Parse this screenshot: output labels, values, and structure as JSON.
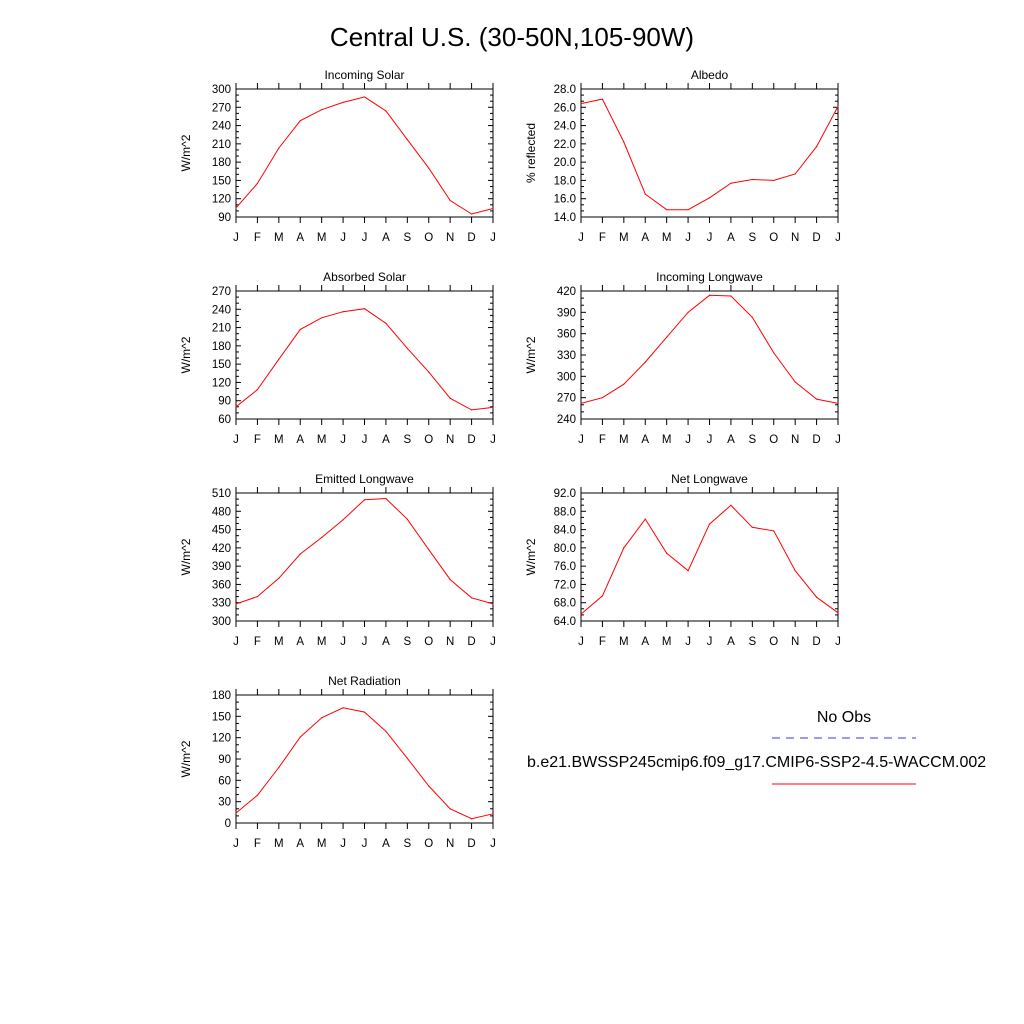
{
  "figure": {
    "title": "Central U.S. (30-50N,105-90W)",
    "series_color": "#ff0000",
    "obs_color": "#3333ff"
  },
  "legend": {
    "entries": [
      {
        "label": "No Obs",
        "style": "dashed",
        "color": "#3333ff"
      },
      {
        "label": "b.e21.BWSSP245cmip6.f09_g17.CMIP6-SSP2-4.5-WACCM.002",
        "style": "solid",
        "color": "#ff0000"
      }
    ]
  },
  "chart_data": [
    {
      "type": "line",
      "title": "Incoming Solar",
      "ylabel": "W/m^2",
      "categories": [
        "J",
        "F",
        "M",
        "A",
        "M",
        "J",
        "J",
        "A",
        "S",
        "O",
        "N",
        "D",
        "J"
      ],
      "ylim": [
        90,
        300
      ],
      "yticks": [
        "90",
        "120",
        "150",
        "180",
        "210",
        "240",
        "270",
        "300"
      ],
      "series": [
        {
          "values": [
            105,
            145,
            203,
            248,
            266,
            278,
            287,
            264,
            217,
            170,
            117,
            95,
            104
          ]
        }
      ]
    },
    {
      "type": "line",
      "title": "Albedo",
      "ylabel": "% reflected",
      "categories": [
        "J",
        "F",
        "M",
        "A",
        "M",
        "J",
        "J",
        "A",
        "S",
        "O",
        "N",
        "D",
        "J"
      ],
      "ylim": [
        14.0,
        28.0
      ],
      "yticks": [
        "14.0",
        "16.0",
        "18.0",
        "20.0",
        "22.0",
        "24.0",
        "26.0",
        "28.0"
      ],
      "series": [
        {
          "values": [
            26.4,
            26.9,
            22.2,
            16.5,
            14.8,
            14.8,
            16.1,
            17.7,
            18.1,
            18.0,
            18.7,
            21.7,
            26.1
          ]
        }
      ]
    },
    {
      "type": "line",
      "title": "Absorbed Solar",
      "ylabel": "W/m^2",
      "categories": [
        "J",
        "F",
        "M",
        "A",
        "M",
        "J",
        "J",
        "A",
        "S",
        "O",
        "N",
        "D",
        "J"
      ],
      "ylim": [
        60,
        270
      ],
      "yticks": [
        "60",
        "90",
        "120",
        "150",
        "180",
        "210",
        "240",
        "270"
      ],
      "series": [
        {
          "values": [
            80,
            108,
            158,
            207,
            226,
            236,
            241,
            217,
            176,
            137,
            94,
            75,
            79
          ]
        }
      ]
    },
    {
      "type": "line",
      "title": "Incoming Longwave",
      "ylabel": "W/m^2",
      "categories": [
        "J",
        "F",
        "M",
        "A",
        "M",
        "J",
        "J",
        "A",
        "S",
        "O",
        "N",
        "D",
        "J"
      ],
      "ylim": [
        240,
        420
      ],
      "yticks": [
        "240",
        "270",
        "300",
        "330",
        "360",
        "390",
        "420"
      ],
      "series": [
        {
          "values": [
            262,
            270,
            289,
            320,
            355,
            390,
            414,
            413,
            383,
            333,
            292,
            268,
            262
          ]
        }
      ]
    },
    {
      "type": "line",
      "title": "Emitted Longwave",
      "ylabel": "W/m^2",
      "categories": [
        "J",
        "F",
        "M",
        "A",
        "M",
        "J",
        "J",
        "A",
        "S",
        "O",
        "N",
        "D",
        "J"
      ],
      "ylim": [
        300,
        510
      ],
      "yticks": [
        "300",
        "330",
        "360",
        "390",
        "420",
        "450",
        "480",
        "510"
      ],
      "series": [
        {
          "values": [
            328,
            340,
            370,
            410,
            437,
            466,
            499,
            501,
            467,
            417,
            368,
            338,
            328
          ]
        }
      ]
    },
    {
      "type": "line",
      "title": "Net Longwave",
      "ylabel": "W/m^2",
      "categories": [
        "J",
        "F",
        "M",
        "A",
        "M",
        "J",
        "J",
        "A",
        "S",
        "O",
        "N",
        "D",
        "J"
      ],
      "ylim": [
        64.0,
        92.0
      ],
      "yticks": [
        "64.0",
        "68.0",
        "72.0",
        "76.0",
        "80.0",
        "84.0",
        "88.0",
        "92.0"
      ],
      "series": [
        {
          "values": [
            65.5,
            69.5,
            80.0,
            86.3,
            78.8,
            75.0,
            85.2,
            89.3,
            84.5,
            83.7,
            75.0,
            69.2,
            65.8
          ]
        }
      ]
    },
    {
      "type": "line",
      "title": "Net Radiation",
      "ylabel": "W/m^2",
      "categories": [
        "J",
        "F",
        "M",
        "A",
        "M",
        "J",
        "J",
        "A",
        "S",
        "O",
        "N",
        "D",
        "J"
      ],
      "ylim": [
        0,
        180
      ],
      "yticks": [
        "0",
        "30",
        "60",
        "90",
        "120",
        "150",
        "180"
      ],
      "series": [
        {
          "values": [
            14,
            39,
            78,
            121,
            148,
            162,
            156,
            129,
            91,
            52,
            20,
            6,
            13
          ]
        }
      ]
    }
  ]
}
